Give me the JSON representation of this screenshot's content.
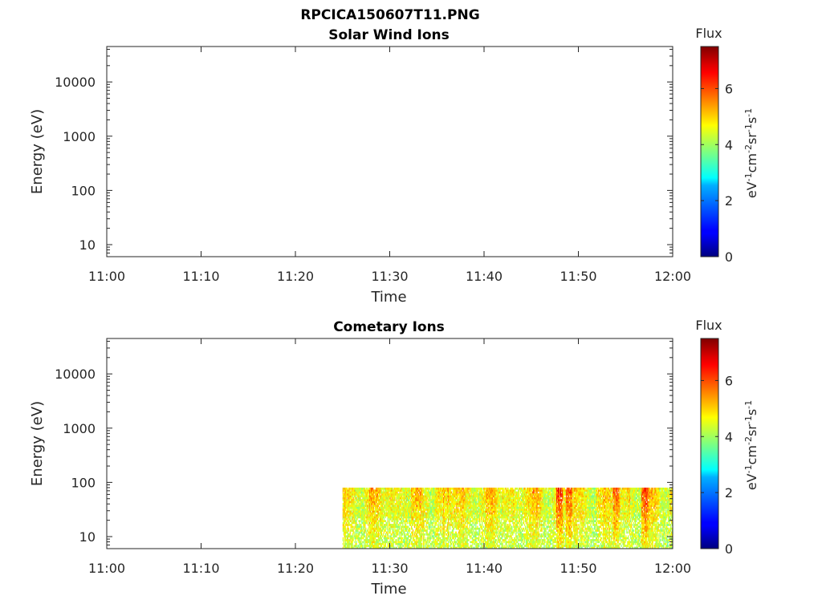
{
  "figure": {
    "file_title": "RPCICA150607T11.PNG"
  },
  "chart_data": [
    {
      "type": "heatmap",
      "title": "Solar Wind Ions",
      "xlabel": "Time",
      "ylabel": "Energy (eV)",
      "x_ticks": [
        "11:00",
        "11:10",
        "11:20",
        "11:30",
        "11:40",
        "11:50",
        "12:00"
      ],
      "xlim": [
        "11:00",
        "12:00"
      ],
      "y_scale": "log",
      "y_ticks": [
        10,
        100,
        1000,
        10000
      ],
      "y_tick_labels": [
        "10",
        "100",
        "1000",
        "10000"
      ],
      "ylim": [
        6,
        45000
      ],
      "colorbar": {
        "label": "Flux",
        "units": "eV-1cm-2sr-1s-1",
        "ticks": [
          0,
          2,
          4,
          6
        ],
        "range": [
          0,
          7.5
        ],
        "colormap": "jet"
      },
      "data": []
    },
    {
      "type": "heatmap",
      "title": "Cometary Ions",
      "xlabel": "Time",
      "ylabel": "Energy (eV)",
      "x_ticks": [
        "11:00",
        "11:10",
        "11:20",
        "11:30",
        "11:40",
        "11:50",
        "12:00"
      ],
      "xlim": [
        "11:00",
        "12:00"
      ],
      "y_scale": "log",
      "y_ticks": [
        10,
        100,
        1000,
        10000
      ],
      "y_tick_labels": [
        "10",
        "100",
        "1000",
        "10000"
      ],
      "ylim": [
        6,
        45000
      ],
      "colorbar": {
        "label": "Flux",
        "units": "eV-1cm-2sr-1s-1",
        "ticks": [
          0,
          2,
          4,
          6
        ],
        "range": [
          0,
          7.5
        ],
        "colormap": "jet"
      },
      "data": {
        "time_start": "11:25",
        "time_end": "12:00",
        "energy_min_eV": 6,
        "energy_max_eV": 80,
        "flux_range": [
          3.5,
          7.2
        ],
        "peak_flux_times": [
          "11:48",
          "11:49",
          "11:54",
          "11:57"
        ]
      }
    }
  ]
}
